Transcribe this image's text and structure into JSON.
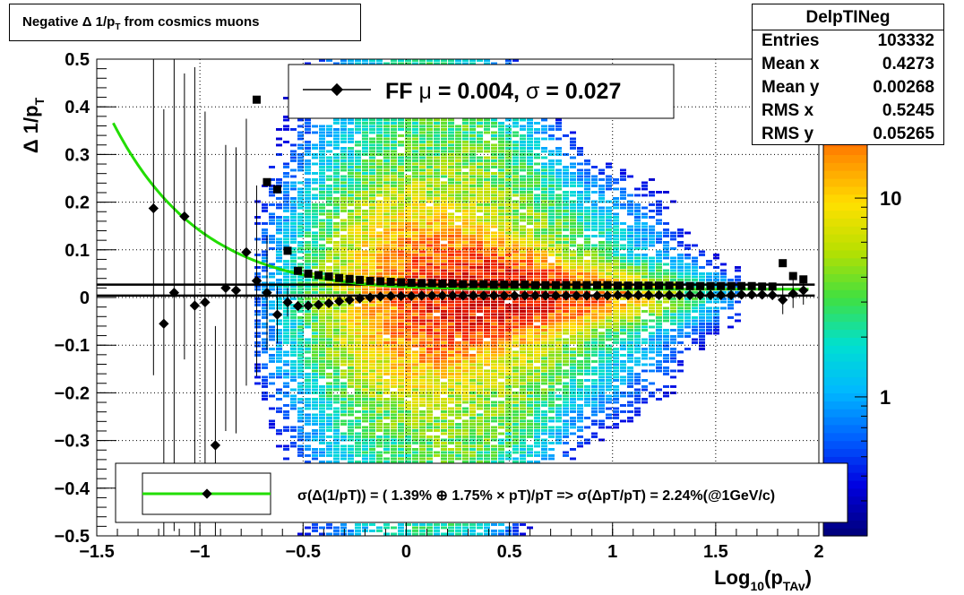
{
  "chart_data": {
    "type": "heatmap",
    "title_parts": {
      "prefix": "Negative ",
      "delta": "Δ",
      "mid": " 1/p",
      "sub": "T",
      "suffix": " from cosmics muons"
    },
    "xlabel_parts": {
      "main": "Log",
      "sub1": "10",
      "mid": "(p",
      "sub2": "TAv",
      "end": ")"
    },
    "ylabel_parts": {
      "main": "Δ 1/p",
      "sub": "T"
    },
    "xlim": [
      -1.5,
      2.0
    ],
    "ylim": [
      -0.5,
      0.5
    ],
    "x_ticks": [
      -1.5,
      -1,
      -0.5,
      0,
      0.5,
      1,
      1.5,
      2
    ],
    "x_tick_labels": [
      "−1.5",
      "−1",
      "−0.5",
      "0",
      "0.5",
      "1",
      "1.5",
      "2"
    ],
    "y_ticks": [
      -0.5,
      -0.4,
      -0.3,
      -0.2,
      -0.1,
      0,
      0.1,
      0.2,
      0.3,
      0.4,
      0.5
    ],
    "y_tick_labels": [
      "−0.5",
      "−0.4",
      "−0.3",
      "−0.2",
      "−0.1",
      "0",
      "0.1",
      "0.2",
      "0.3",
      "0.4",
      "0.5"
    ],
    "grid": true,
    "log_z": true,
    "colorbar_ticks": [
      1,
      10
    ],
    "colorbar_tick_labels": [
      "1",
      "10"
    ],
    "colorbar_range": [
      0.2,
      50
    ],
    "mean_profile": [
      {
        "x": -1.225,
        "y": 0.187,
        "err": 0.35
      },
      {
        "x": -1.175,
        "y": -0.055,
        "err": 0.45
      },
      {
        "x": -1.125,
        "y": 0.01,
        "err": 0.5
      },
      {
        "x": -1.075,
        "y": 0.17,
        "err": 0.3
      },
      {
        "x": -1.025,
        "y": -0.017,
        "err": 0.5
      },
      {
        "x": -0.975,
        "y": -0.01,
        "err": 0.4
      },
      {
        "x": -0.925,
        "y": -0.31,
        "err": 0.25
      },
      {
        "x": -0.875,
        "y": 0.02,
        "err": 0.3
      },
      {
        "x": -0.825,
        "y": 0.015,
        "err": 0.3
      },
      {
        "x": -0.775,
        "y": 0.095,
        "err": 0.28
      },
      {
        "x": -0.725,
        "y": 0.035,
        "err": 0.2
      },
      {
        "x": -0.675,
        "y": 0.01,
        "err": 0.12
      },
      {
        "x": -0.625,
        "y": -0.036,
        "err": 0.06
      },
      {
        "x": -0.575,
        "y": -0.01,
        "err": 0.03
      },
      {
        "x": -0.525,
        "y": -0.018,
        "err": 0.01
      },
      {
        "x": -0.475,
        "y": -0.017,
        "err": 0.008
      },
      {
        "x": -0.425,
        "y": -0.015,
        "err": 0.006
      },
      {
        "x": -0.375,
        "y": -0.012,
        "err": 0.005
      },
      {
        "x": -0.325,
        "y": -0.008,
        "err": 0.004
      },
      {
        "x": -0.275,
        "y": -0.005,
        "err": 0.003
      },
      {
        "x": -0.225,
        "y": -0.002,
        "err": 0.003
      },
      {
        "x": -0.175,
        "y": 0.0,
        "err": 0.002
      },
      {
        "x": -0.125,
        "y": 0.002,
        "err": 0.002
      },
      {
        "x": -0.075,
        "y": 0.003,
        "err": 0.002
      },
      {
        "x": -0.025,
        "y": 0.003,
        "err": 0.002
      },
      {
        "x": 0.025,
        "y": 0.003,
        "err": 0.002
      },
      {
        "x": 0.075,
        "y": 0.004,
        "err": 0.002
      },
      {
        "x": 0.125,
        "y": 0.004,
        "err": 0.002
      },
      {
        "x": 0.175,
        "y": 0.004,
        "err": 0.002
      },
      {
        "x": 0.225,
        "y": 0.004,
        "err": 0.002
      },
      {
        "x": 0.275,
        "y": 0.004,
        "err": 0.002
      },
      {
        "x": 0.325,
        "y": 0.004,
        "err": 0.002
      },
      {
        "x": 0.375,
        "y": 0.004,
        "err": 0.002
      },
      {
        "x": 0.425,
        "y": 0.004,
        "err": 0.002
      },
      {
        "x": 0.475,
        "y": 0.004,
        "err": 0.002
      },
      {
        "x": 0.525,
        "y": 0.004,
        "err": 0.002
      },
      {
        "x": 0.575,
        "y": 0.004,
        "err": 0.002
      },
      {
        "x": 0.625,
        "y": 0.004,
        "err": 0.002
      },
      {
        "x": 0.675,
        "y": 0.004,
        "err": 0.002
      },
      {
        "x": 0.725,
        "y": 0.004,
        "err": 0.002
      },
      {
        "x": 0.775,
        "y": 0.004,
        "err": 0.002
      },
      {
        "x": 0.825,
        "y": 0.004,
        "err": 0.002
      },
      {
        "x": 0.875,
        "y": 0.004,
        "err": 0.002
      },
      {
        "x": 0.925,
        "y": 0.004,
        "err": 0.002
      },
      {
        "x": 0.975,
        "y": 0.004,
        "err": 0.002
      },
      {
        "x": 1.025,
        "y": 0.005,
        "err": 0.002
      },
      {
        "x": 1.075,
        "y": 0.005,
        "err": 0.002
      },
      {
        "x": 1.125,
        "y": 0.005,
        "err": 0.002
      },
      {
        "x": 1.175,
        "y": 0.005,
        "err": 0.002
      },
      {
        "x": 1.225,
        "y": 0.005,
        "err": 0.003
      },
      {
        "x": 1.275,
        "y": 0.005,
        "err": 0.003
      },
      {
        "x": 1.325,
        "y": 0.005,
        "err": 0.003
      },
      {
        "x": 1.375,
        "y": 0.005,
        "err": 0.003
      },
      {
        "x": 1.425,
        "y": 0.005,
        "err": 0.003
      },
      {
        "x": 1.475,
        "y": 0.005,
        "err": 0.004
      },
      {
        "x": 1.525,
        "y": 0.005,
        "err": 0.004
      },
      {
        "x": 1.575,
        "y": 0.005,
        "err": 0.004
      },
      {
        "x": 1.625,
        "y": 0.006,
        "err": 0.005
      },
      {
        "x": 1.675,
        "y": 0.006,
        "err": 0.006
      },
      {
        "x": 1.725,
        "y": 0.006,
        "err": 0.008
      },
      {
        "x": 1.775,
        "y": 0.005,
        "err": 0.01
      },
      {
        "x": 1.825,
        "y": -0.005,
        "err": 0.03
      },
      {
        "x": 1.875,
        "y": 0.008,
        "err": 0.03
      },
      {
        "x": 1.925,
        "y": 0.015,
        "err": 0.03
      }
    ],
    "sigma_profile": [
      {
        "x": -0.725,
        "y": 0.415
      },
      {
        "x": -0.675,
        "y": 0.242
      },
      {
        "x": -0.625,
        "y": 0.227
      },
      {
        "x": -0.575,
        "y": 0.098
      },
      {
        "x": -0.525,
        "y": 0.056
      },
      {
        "x": -0.475,
        "y": 0.05
      },
      {
        "x": -0.425,
        "y": 0.047
      },
      {
        "x": -0.375,
        "y": 0.044
      },
      {
        "x": -0.325,
        "y": 0.041
      },
      {
        "x": -0.275,
        "y": 0.039
      },
      {
        "x": -0.225,
        "y": 0.037
      },
      {
        "x": -0.175,
        "y": 0.035
      },
      {
        "x": -0.125,
        "y": 0.034
      },
      {
        "x": -0.075,
        "y": 0.033
      },
      {
        "x": -0.025,
        "y": 0.032
      },
      {
        "x": 0.025,
        "y": 0.031
      },
      {
        "x": 0.075,
        "y": 0.03
      },
      {
        "x": 0.125,
        "y": 0.03
      },
      {
        "x": 0.175,
        "y": 0.029
      },
      {
        "x": 0.225,
        "y": 0.029
      },
      {
        "x": 0.275,
        "y": 0.028
      },
      {
        "x": 0.325,
        "y": 0.028
      },
      {
        "x": 0.375,
        "y": 0.028
      },
      {
        "x": 0.425,
        "y": 0.027
      },
      {
        "x": 0.475,
        "y": 0.027
      },
      {
        "x": 0.525,
        "y": 0.027
      },
      {
        "x": 0.575,
        "y": 0.027
      },
      {
        "x": 0.625,
        "y": 0.026
      },
      {
        "x": 0.675,
        "y": 0.026
      },
      {
        "x": 0.725,
        "y": 0.026
      },
      {
        "x": 0.775,
        "y": 0.026
      },
      {
        "x": 0.825,
        "y": 0.026
      },
      {
        "x": 0.875,
        "y": 0.026
      },
      {
        "x": 0.925,
        "y": 0.026
      },
      {
        "x": 0.975,
        "y": 0.026
      },
      {
        "x": 1.025,
        "y": 0.025
      },
      {
        "x": 1.075,
        "y": 0.025
      },
      {
        "x": 1.125,
        "y": 0.025
      },
      {
        "x": 1.175,
        "y": 0.025
      },
      {
        "x": 1.225,
        "y": 0.025
      },
      {
        "x": 1.275,
        "y": 0.025
      },
      {
        "x": 1.325,
        "y": 0.025
      },
      {
        "x": 1.375,
        "y": 0.024
      },
      {
        "x": 1.425,
        "y": 0.024
      },
      {
        "x": 1.475,
        "y": 0.024
      },
      {
        "x": 1.525,
        "y": 0.024
      },
      {
        "x": 1.575,
        "y": 0.024
      },
      {
        "x": 1.625,
        "y": 0.024
      },
      {
        "x": 1.675,
        "y": 0.024
      },
      {
        "x": 1.725,
        "y": 0.023
      },
      {
        "x": 1.775,
        "y": 0.023
      },
      {
        "x": 1.825,
        "y": 0.072
      },
      {
        "x": 1.875,
        "y": 0.045
      },
      {
        "x": 1.925,
        "y": 0.038
      }
    ],
    "resolution_fit": {
      "formula": "sqrt(a^2 + (b*pT)^2)/pT",
      "a": 0.0139,
      "b": 0.0175,
      "x_range": [
        -1.42,
        1.95
      ]
    },
    "ff_lines": {
      "mu": 0.004,
      "sigma": 0.027,
      "x_range": [
        -1.5,
        1.98
      ]
    },
    "ff_legend": {
      "prefix": "FF ",
      "mu_symbol": "μ",
      "mid": " =  0.004, ",
      "sigma_symbol": "σ",
      "end": " =   0.027"
    },
    "fit_legend_text": "σ(Δ(1/pT)) = ( 1.39% ⊕  1.75% × pT)/pT => σ(ΔpT/pT) =  2.24%(@1GeV/c)",
    "stats": {
      "name": "DelpTINeg",
      "rows": [
        {
          "label": "Entries",
          "value": "103332"
        },
        {
          "label": "Mean x",
          "value": "0.4273"
        },
        {
          "label": "Mean y",
          "value": "0.00268"
        },
        {
          "label": "RMS x",
          "value": "0.5245"
        },
        {
          "label": "RMS y",
          "value": "0.05265"
        }
      ]
    },
    "colors": {
      "fit_curve": "#22dd00",
      "markers": "#000000",
      "grid": "#000000",
      "palette": [
        "#000080",
        "#0000e0",
        "#0060ff",
        "#00b8ff",
        "#00e0d0",
        "#40e040",
        "#b8e000",
        "#ffe000",
        "#ff9000",
        "#ff3000",
        "#c00000"
      ]
    }
  }
}
